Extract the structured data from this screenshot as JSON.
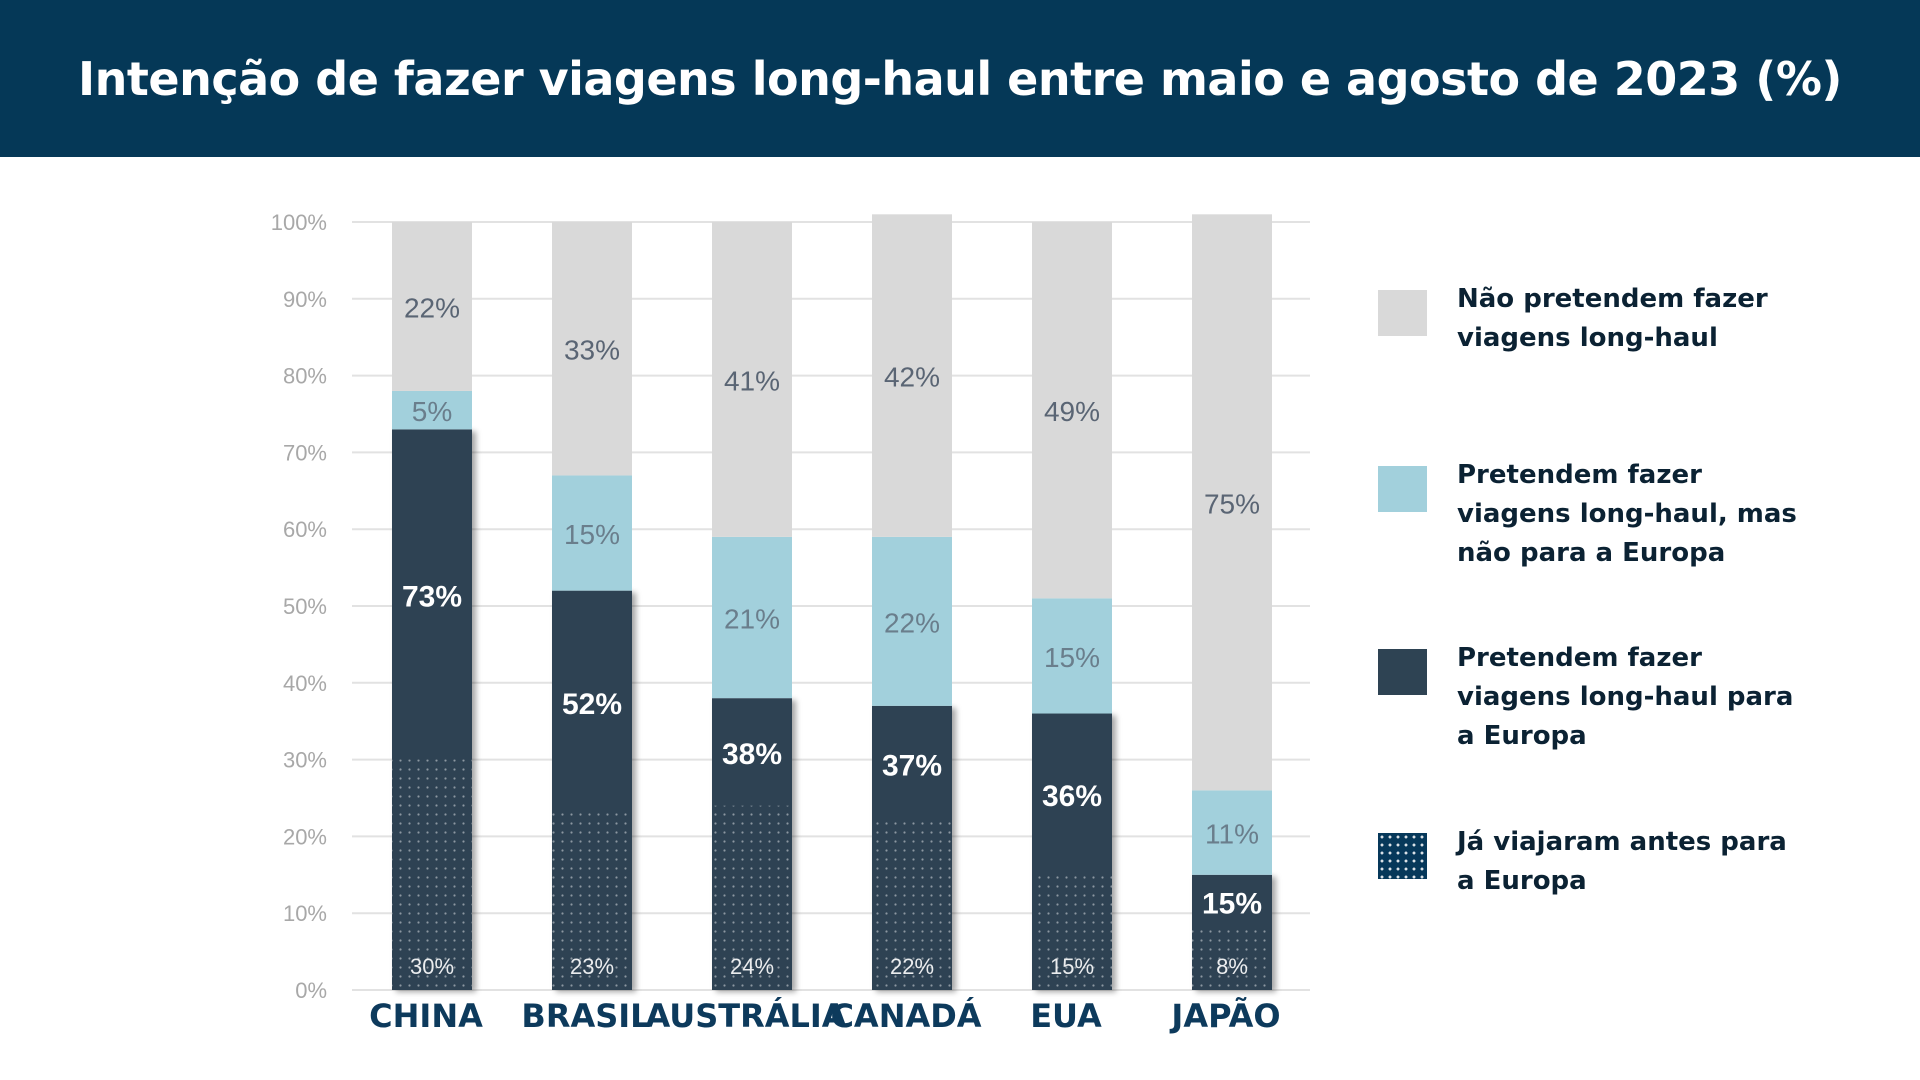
{
  "title": "Intenção de fazer viagens long-haul entre maio e agosto de 2023 (%)",
  "colors": {
    "header_bg": "#053857",
    "none": "#d9d9d9",
    "notEurope": "#a2d0dc",
    "europe": "#2e4353",
    "before_pattern": "#06385a",
    "grid": "#e2e2e2",
    "tick_text": "#a8a8a8",
    "category_text": "#0d3a5c"
  },
  "legend": [
    {
      "key": "none",
      "label": "Não pretendem fazer viagens long-haul",
      "color": "#d9d9d9",
      "pattern": false
    },
    {
      "key": "notEurope",
      "label": "Pretendem fazer viagens long-haul, mas não para a Europa",
      "color": "#a2d0dc",
      "pattern": false
    },
    {
      "key": "europe",
      "label": "Pretendem fazer viagens long-haul para a Europa",
      "color": "#2e4353",
      "pattern": false
    },
    {
      "key": "before",
      "label": "Já viajaram antes para a Europa",
      "color": "#06385a",
      "pattern": true
    }
  ],
  "chart_data": {
    "type": "bar",
    "stacked": true,
    "categories": [
      "CHINA",
      "BRASIL",
      "AUSTRÁLIA",
      "CANADÁ",
      "EUA",
      "JAPÃO"
    ],
    "series": [
      {
        "name": "Pretendem fazer viagens long-haul para a Europa",
        "key": "europe",
        "values": [
          73,
          52,
          38,
          37,
          36,
          15
        ],
        "labels": [
          "73%",
          "52%",
          "38%",
          "37%",
          "36%",
          "15%"
        ]
      },
      {
        "name": "Pretendem fazer viagens long-haul, mas não para a Europa",
        "key": "notEurope",
        "values": [
          5,
          15,
          21,
          22,
          15,
          11
        ],
        "labels": [
          "5%",
          "15%",
          "21%",
          "22%",
          "15%",
          "11%"
        ]
      },
      {
        "name": "Não pretendem fazer viagens long-haul",
        "key": "none",
        "values": [
          22,
          33,
          41,
          42,
          49,
          75
        ],
        "labels": [
          "22%",
          "33%",
          "41%",
          "42%",
          "49%",
          "75%"
        ]
      }
    ],
    "subset": {
      "name": "Já viajaram antes para a Europa",
      "values": [
        30,
        23,
        24,
        22,
        15,
        8
      ],
      "labels": [
        "30%",
        "23%",
        "24%",
        "22%",
        "15%",
        "8%"
      ]
    },
    "y_ticks": [
      "0%",
      "10%",
      "20%",
      "30%",
      "40%",
      "50%",
      "60%",
      "70%",
      "80%",
      "90%",
      "100%"
    ],
    "ylim": [
      0,
      100
    ],
    "grid": true,
    "legend_position": "right"
  }
}
